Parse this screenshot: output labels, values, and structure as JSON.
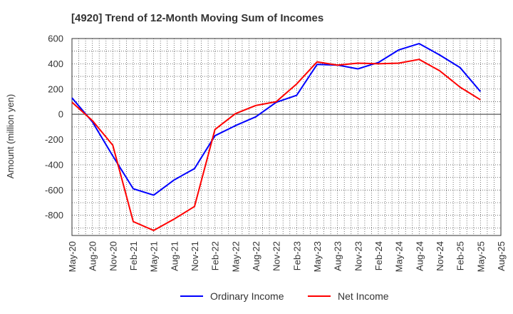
{
  "chart_data": {
    "type": "line",
    "title": "[4920]  Trend of 12-Month Moving Sum of Incomes",
    "xlabel": "",
    "ylabel": "Amount (million yen)",
    "ylim": [
      -960,
      600
    ],
    "yticks": [
      600,
      400,
      200,
      0,
      -200,
      -400,
      -600,
      -800
    ],
    "x_tick_labels": [
      "May-20",
      "Aug-20",
      "Nov-20",
      "Feb-21",
      "May-21",
      "Aug-21",
      "Nov-21",
      "Feb-22",
      "May-22",
      "Aug-22",
      "Nov-22",
      "Feb-23",
      "May-23",
      "Aug-23",
      "Nov-23",
      "Feb-24",
      "May-24",
      "Aug-24",
      "Nov-24",
      "Feb-25",
      "May-25",
      "Aug-25"
    ],
    "grid": true,
    "legend_position": "bottom",
    "series": [
      {
        "name": "Ordinary Income",
        "color": "#0000ff",
        "values": [
          130,
          -60,
          -330,
          -590,
          -640,
          -520,
          -430,
          -170,
          -90,
          -20,
          95,
          150,
          395,
          390,
          360,
          410,
          510,
          560,
          470,
          370,
          180
        ]
      },
      {
        "name": "Net Income",
        "color": "#ff0000",
        "values": [
          95,
          -50,
          -245,
          -850,
          -920,
          -830,
          -730,
          -120,
          5,
          70,
          100,
          240,
          415,
          390,
          405,
          400,
          405,
          435,
          345,
          215,
          115
        ]
      }
    ]
  }
}
